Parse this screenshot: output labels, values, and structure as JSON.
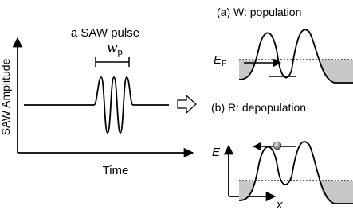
{
  "left_panel": {
    "title": "a SAW pulse",
    "width_label": {
      "main": "w",
      "sub": "p"
    },
    "y_axis_label": "SAW Amplitude",
    "x_axis_label": "Time"
  },
  "panel_a": {
    "title": "(a) W: population",
    "fermi_label": {
      "main": "E",
      "sub": "F"
    }
  },
  "panel_b": {
    "title": "(b) R: depopulation",
    "y_axis_label": "E",
    "x_axis_label": "x"
  }
}
